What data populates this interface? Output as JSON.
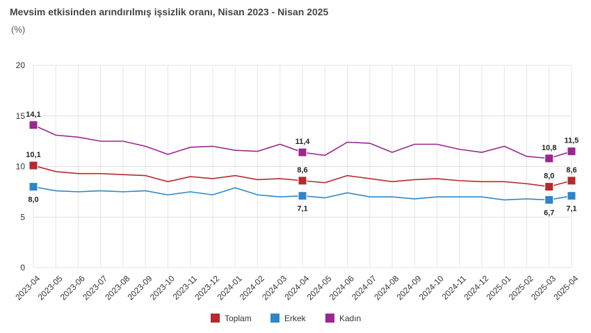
{
  "chart_data": {
    "type": "line",
    "title": "Mevsim etkisinden arındırılmış işsizlik oranı, Nisan 2023 - Nisan 2025",
    "subtitle": "(%)",
    "categories": [
      "2023-04",
      "2023-05",
      "2023-06",
      "2023-07",
      "2023-08",
      "2023-09",
      "2023-10",
      "2023-11",
      "2023-12",
      "2024-01",
      "2024-02",
      "2024-03",
      "2024-04",
      "2024-05",
      "2024-06",
      "2024-07",
      "2024-08",
      "2024-09",
      "2024-10",
      "2024-11",
      "2024-12",
      "2025-01",
      "2025-02",
      "2025-03",
      "2025-04"
    ],
    "series": [
      {
        "name": "Toplam",
        "color": "#b8282c",
        "values": [
          10.1,
          9.5,
          9.3,
          9.3,
          9.2,
          9.1,
          8.5,
          9.0,
          8.8,
          9.1,
          8.7,
          8.8,
          8.6,
          8.4,
          9.1,
          8.8,
          8.5,
          8.7,
          8.8,
          8.6,
          8.5,
          8.5,
          8.3,
          8.0,
          8.6
        ],
        "value_labels": [
          "10,1",
          null,
          null,
          null,
          null,
          null,
          null,
          null,
          null,
          null,
          null,
          null,
          "8,6",
          null,
          null,
          null,
          null,
          null,
          null,
          null,
          null,
          null,
          null,
          "8,0",
          "8,6"
        ]
      },
      {
        "name": "Erkek",
        "color": "#2e86c9",
        "values": [
          8.0,
          7.6,
          7.5,
          7.6,
          7.5,
          7.6,
          7.2,
          7.5,
          7.2,
          7.9,
          7.2,
          7.0,
          7.1,
          6.9,
          7.4,
          7.0,
          7.0,
          6.8,
          7.0,
          7.0,
          7.0,
          6.7,
          6.8,
          6.7,
          7.1
        ],
        "value_labels": [
          "8,0",
          null,
          null,
          null,
          null,
          null,
          null,
          null,
          null,
          null,
          null,
          null,
          "7,1",
          null,
          null,
          null,
          null,
          null,
          null,
          null,
          null,
          null,
          null,
          "6,7",
          "7,1"
        ]
      },
      {
        "name": "Kadın",
        "color": "#9c2590",
        "values": [
          14.1,
          13.1,
          12.9,
          12.5,
          12.5,
          12.0,
          11.2,
          11.9,
          12.0,
          11.6,
          11.5,
          12.2,
          11.4,
          11.1,
          12.4,
          12.3,
          11.4,
          12.2,
          12.2,
          11.7,
          11.4,
          12.0,
          11.0,
          10.8,
          11.5
        ],
        "value_labels": [
          "14,1",
          null,
          null,
          null,
          null,
          null,
          null,
          null,
          null,
          null,
          null,
          null,
          "11,4",
          null,
          null,
          null,
          null,
          null,
          null,
          null,
          null,
          null,
          null,
          "10,8",
          "11,5"
        ]
      }
    ],
    "ylim": [
      0,
      20
    ],
    "yticks": [
      0,
      5,
      10,
      15,
      20
    ],
    "grid": true
  }
}
